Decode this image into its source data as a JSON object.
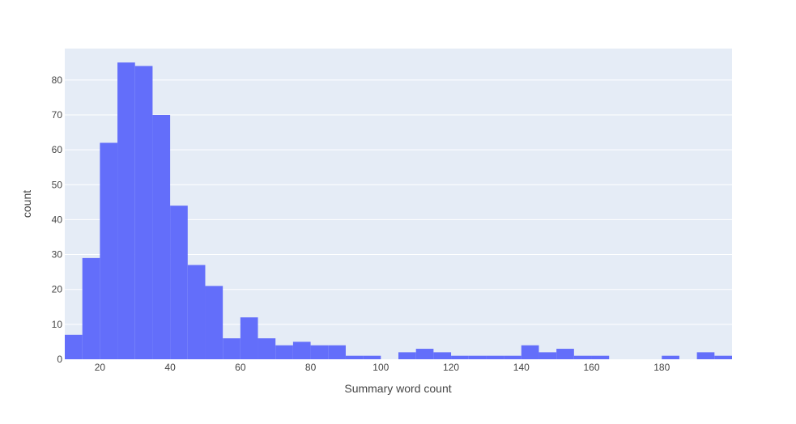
{
  "chart_data": {
    "type": "bar",
    "subtype": "histogram",
    "xlabel": "Summary word count",
    "ylabel": "count",
    "xlim": [
      10,
      200
    ],
    "ylim": [
      0,
      89
    ],
    "bin_width": 5,
    "bins": [
      {
        "x0": 10,
        "x1": 15,
        "count": 7
      },
      {
        "x0": 15,
        "x1": 20,
        "count": 29
      },
      {
        "x0": 20,
        "x1": 25,
        "count": 62
      },
      {
        "x0": 25,
        "x1": 30,
        "count": 85
      },
      {
        "x0": 30,
        "x1": 35,
        "count": 84
      },
      {
        "x0": 35,
        "x1": 40,
        "count": 70
      },
      {
        "x0": 40,
        "x1": 45,
        "count": 44
      },
      {
        "x0": 45,
        "x1": 50,
        "count": 27
      },
      {
        "x0": 50,
        "x1": 55,
        "count": 21
      },
      {
        "x0": 55,
        "x1": 60,
        "count": 6
      },
      {
        "x0": 60,
        "x1": 65,
        "count": 12
      },
      {
        "x0": 65,
        "x1": 70,
        "count": 6
      },
      {
        "x0": 70,
        "x1": 75,
        "count": 4
      },
      {
        "x0": 75,
        "x1": 80,
        "count": 5
      },
      {
        "x0": 80,
        "x1": 85,
        "count": 4
      },
      {
        "x0": 85,
        "x1": 90,
        "count": 4
      },
      {
        "x0": 90,
        "x1": 95,
        "count": 1
      },
      {
        "x0": 95,
        "x1": 100,
        "count": 1
      },
      {
        "x0": 100,
        "x1": 105,
        "count": 0
      },
      {
        "x0": 105,
        "x1": 110,
        "count": 2
      },
      {
        "x0": 110,
        "x1": 115,
        "count": 3
      },
      {
        "x0": 115,
        "x1": 120,
        "count": 2
      },
      {
        "x0": 120,
        "x1": 125,
        "count": 1
      },
      {
        "x0": 125,
        "x1": 130,
        "count": 1
      },
      {
        "x0": 130,
        "x1": 135,
        "count": 1
      },
      {
        "x0": 135,
        "x1": 140,
        "count": 1
      },
      {
        "x0": 140,
        "x1": 145,
        "count": 4
      },
      {
        "x0": 145,
        "x1": 150,
        "count": 2
      },
      {
        "x0": 150,
        "x1": 155,
        "count": 3
      },
      {
        "x0": 155,
        "x1": 160,
        "count": 1
      },
      {
        "x0": 160,
        "x1": 165,
        "count": 1
      },
      {
        "x0": 165,
        "x1": 170,
        "count": 0
      },
      {
        "x0": 170,
        "x1": 175,
        "count": 0
      },
      {
        "x0": 175,
        "x1": 180,
        "count": 0
      },
      {
        "x0": 180,
        "x1": 185,
        "count": 1
      },
      {
        "x0": 185,
        "x1": 190,
        "count": 0
      },
      {
        "x0": 190,
        "x1": 195,
        "count": 2
      },
      {
        "x0": 195,
        "x1": 200,
        "count": 1
      }
    ],
    "x_ticks": [
      20,
      40,
      60,
      80,
      100,
      120,
      140,
      160,
      180
    ],
    "x_tick_labels": [
      "20",
      "40",
      "60",
      "80",
      "100",
      "120",
      "140",
      "160",
      "180"
    ],
    "y_ticks": [
      0,
      10,
      20,
      30,
      40,
      50,
      60,
      70,
      80
    ],
    "y_tick_labels": [
      "0",
      "10",
      "20",
      "30",
      "40",
      "50",
      "60",
      "70",
      "80"
    ],
    "grid": true,
    "bar_color": "#636efa",
    "plot_bg_color": "#e5ecf6",
    "grid_color": "#ffffff"
  }
}
